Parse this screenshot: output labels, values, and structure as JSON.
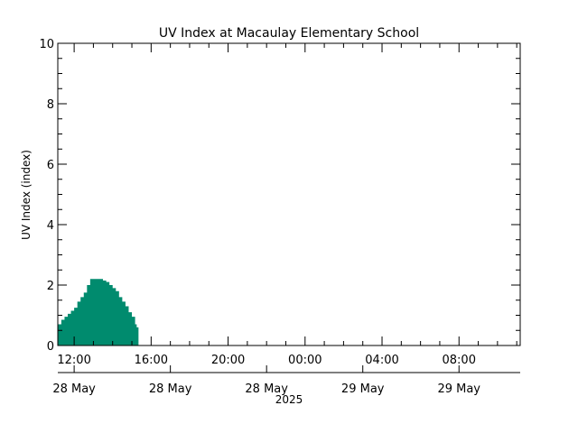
{
  "chart_data": {
    "type": "area",
    "title": "UV Index at Macaulay Elementary School",
    "ylabel": "UV Index (index)",
    "xlabel": "2025",
    "ylim": [
      0,
      10
    ],
    "yticks": [
      "0",
      "2",
      "4",
      "6",
      "8",
      "10"
    ],
    "xlim_hours": [
      11.15,
      35.18
    ],
    "xticks": [
      {
        "hour": 12,
        "label": "12:00"
      },
      {
        "hour": 16,
        "label": "16:00"
      },
      {
        "hour": 20,
        "label": "20:00"
      },
      {
        "hour": 24,
        "label": "00:00"
      },
      {
        "hour": 28,
        "label": "04:00"
      },
      {
        "hour": 32,
        "label": "08:00"
      }
    ],
    "date_labels": [
      {
        "hour": 12,
        "label": "28 May"
      },
      {
        "hour": 17,
        "label": "28 May"
      },
      {
        "hour": 22,
        "label": "28 May"
      },
      {
        "hour": 27,
        "label": "29 May"
      },
      {
        "hour": 32,
        "label": "29 May"
      }
    ],
    "year_label": "2025",
    "color": "#008B6E",
    "series": [
      {
        "name": "UV Index",
        "x_hours": [
          11.167,
          11.333,
          11.5,
          11.667,
          11.833,
          12.0,
          12.167,
          12.333,
          12.5,
          12.667,
          12.833,
          13.0,
          13.167,
          13.333,
          13.5,
          13.667,
          13.833,
          14.0,
          14.167,
          14.333,
          14.5,
          14.667,
          14.833,
          15.0,
          15.167,
          15.25
        ],
        "values": [
          0.7,
          0.85,
          0.95,
          1.05,
          1.15,
          1.25,
          1.45,
          1.6,
          1.75,
          2.0,
          2.2,
          2.2,
          2.2,
          2.2,
          2.15,
          2.1,
          2.0,
          1.9,
          1.8,
          1.6,
          1.45,
          1.3,
          1.1,
          0.95,
          0.7,
          0.6
        ]
      }
    ]
  }
}
